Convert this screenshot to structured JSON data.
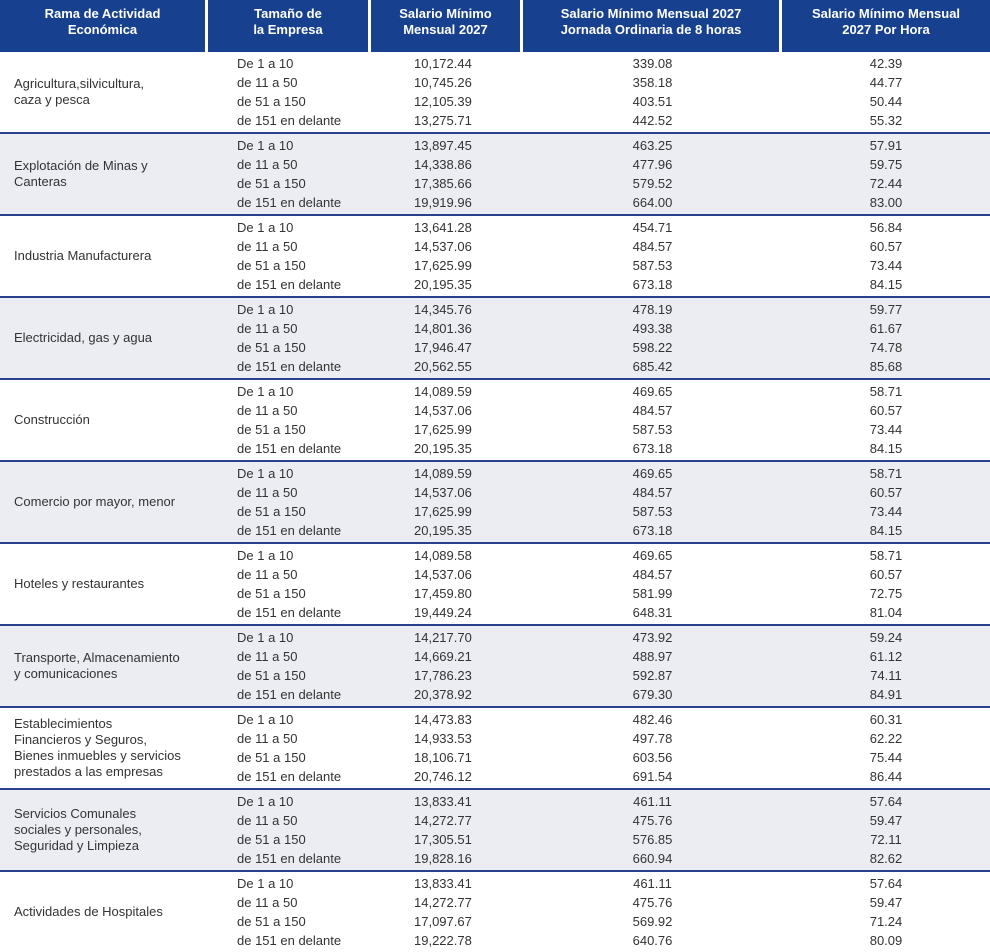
{
  "table": {
    "headers": [
      {
        "id": "sector",
        "label": "Rama de Actividad\nEconómica"
      },
      {
        "id": "size",
        "label": "Tamaño de\nla Empresa"
      },
      {
        "id": "monthly",
        "label": "Salario Mínimo\nMensual 2027"
      },
      {
        "id": "daily",
        "label": "Salario Mínimo Mensual 2027\nJornada Ordinaria de 8 horas"
      },
      {
        "id": "hourly",
        "label": "Salario Mínimo Mensual\n2027 Por Hora"
      }
    ],
    "sectors": [
      {
        "name": "Agricultura,silvicultura,\ncaza y pesca",
        "rows": [
          {
            "size": "De 1 a 10",
            "monthly": "10,172.44",
            "daily": "339.08",
            "hourly": "42.39"
          },
          {
            "size": "de 11 a 50",
            "monthly": "10,745.26",
            "daily": "358.18",
            "hourly": "44.77"
          },
          {
            "size": "de 51 a 150",
            "monthly": "12,105.39",
            "daily": "403.51",
            "hourly": "50.44"
          },
          {
            "size": "de 151 en delante",
            "monthly": "13,275.71",
            "daily": "442.52",
            "hourly": "55.32"
          }
        ]
      },
      {
        "name": "Explotación de Minas y\nCanteras",
        "rows": [
          {
            "size": "De 1 a 10",
            "monthly": "13,897.45",
            "daily": "463.25",
            "hourly": "57.91"
          },
          {
            "size": "de 11 a 50",
            "monthly": "14,338.86",
            "daily": "477.96",
            "hourly": "59.75"
          },
          {
            "size": "de 51 a 150",
            "monthly": "17,385.66",
            "daily": "579.52",
            "hourly": "72.44"
          },
          {
            "size": "de 151 en delante",
            "monthly": "19,919.96",
            "daily": "664.00",
            "hourly": "83.00"
          }
        ]
      },
      {
        "name": "Industria Manufacturera",
        "rows": [
          {
            "size": "De 1 a 10",
            "monthly": "13,641.28",
            "daily": "454.71",
            "hourly": "56.84"
          },
          {
            "size": "de 11 a 50",
            "monthly": "14,537.06",
            "daily": "484.57",
            "hourly": "60.57"
          },
          {
            "size": "de 51 a 150",
            "monthly": "17,625.99",
            "daily": "587.53",
            "hourly": "73.44"
          },
          {
            "size": "de 151 en delante",
            "monthly": "20,195.35",
            "daily": "673.18",
            "hourly": "84.15"
          }
        ]
      },
      {
        "name": "Electricidad, gas y agua",
        "rows": [
          {
            "size": "De 1 a 10",
            "monthly": "14,345.76",
            "daily": "478.19",
            "hourly": "59.77"
          },
          {
            "size": "de 11 a 50",
            "monthly": "14,801.36",
            "daily": "493.38",
            "hourly": "61.67"
          },
          {
            "size": "de 51 a 150",
            "monthly": "17,946.47",
            "daily": "598.22",
            "hourly": "74.78"
          },
          {
            "size": "de 151 en delante",
            "monthly": "20,562.55",
            "daily": "685.42",
            "hourly": "85.68"
          }
        ]
      },
      {
        "name": "Construcción",
        "rows": [
          {
            "size": "De 1 a 10",
            "monthly": "14,089.59",
            "daily": "469.65",
            "hourly": "58.71"
          },
          {
            "size": "de 11 a 50",
            "monthly": "14,537.06",
            "daily": "484.57",
            "hourly": "60.57"
          },
          {
            "size": "de 51 a 150",
            "monthly": "17,625.99",
            "daily": "587.53",
            "hourly": "73.44"
          },
          {
            "size": "de 151 en delante",
            "monthly": "20,195.35",
            "daily": "673.18",
            "hourly": "84.15"
          }
        ]
      },
      {
        "name": "Comercio por mayor, menor",
        "rows": [
          {
            "size": "De 1 a 10",
            "monthly": "14,089.59",
            "daily": "469.65",
            "hourly": "58.71"
          },
          {
            "size": "de 11 a 50",
            "monthly": "14,537.06",
            "daily": "484.57",
            "hourly": "60.57"
          },
          {
            "size": "de 51 a 150",
            "monthly": "17,625.99",
            "daily": "587.53",
            "hourly": "73.44"
          },
          {
            "size": "de 151 en delante",
            "monthly": "20,195.35",
            "daily": "673.18",
            "hourly": "84.15"
          }
        ]
      },
      {
        "name": "Hoteles y restaurantes",
        "rows": [
          {
            "size": "De 1 a 10",
            "monthly": "14,089.58",
            "daily": "469.65",
            "hourly": "58.71"
          },
          {
            "size": "de 11 a 50",
            "monthly": "14,537.06",
            "daily": "484.57",
            "hourly": "60.57"
          },
          {
            "size": "de 51 a 150",
            "monthly": "17,459.80",
            "daily": "581.99",
            "hourly": "72.75"
          },
          {
            "size": "de 151 en delante",
            "monthly": "19,449.24",
            "daily": "648.31",
            "hourly": "81.04"
          }
        ]
      },
      {
        "name": "Transporte, Almacenamiento\ny comunicaciones",
        "rows": [
          {
            "size": "De 1 a 10",
            "monthly": "14,217.70",
            "daily": "473.92",
            "hourly": "59.24"
          },
          {
            "size": "de 11 a 50",
            "monthly": "14,669.21",
            "daily": "488.97",
            "hourly": "61.12"
          },
          {
            "size": "de 51 a 150",
            "monthly": "17,786.23",
            "daily": "592.87",
            "hourly": "74.11"
          },
          {
            "size": "de 151 en delante",
            "monthly": "20,378.92",
            "daily": "679.30",
            "hourly": "84.91"
          }
        ]
      },
      {
        "name": "Establecimientos\nFinancieros y Seguros,\nBienes inmuebles y servicios\nprestados a las empresas",
        "rows": [
          {
            "size": "De 1 a 10",
            "monthly": "14,473.83",
            "daily": "482.46",
            "hourly": "60.31"
          },
          {
            "size": "de 11 a 50",
            "monthly": "14,933.53",
            "daily": "497.78",
            "hourly": "62.22"
          },
          {
            "size": "de 51 a 150",
            "monthly": "18,106.71",
            "daily": "603.56",
            "hourly": "75.44"
          },
          {
            "size": "de 151 en delante",
            "monthly": "20,746.12",
            "daily": "691.54",
            "hourly": "86.44"
          }
        ]
      },
      {
        "name": "Servicios Comunales\nsociales y personales,\nSeguridad y Limpieza",
        "rows": [
          {
            "size": "De 1 a 10",
            "monthly": "13,833.41",
            "daily": "461.11",
            "hourly": "57.64"
          },
          {
            "size": "de 11 a 50",
            "monthly": "14,272.77",
            "daily": "475.76",
            "hourly": "59.47"
          },
          {
            "size": "de 51 a 150",
            "monthly": "17,305.51",
            "daily": "576.85",
            "hourly": "72.11"
          },
          {
            "size": "de 151 en delante",
            "monthly": "19,828.16",
            "daily": "660.94",
            "hourly": "82.62"
          }
        ]
      },
      {
        "name": "Actividades de Hospitales",
        "rows": [
          {
            "size": "De 1 a 10",
            "monthly": "13,833.41",
            "daily": "461.11",
            "hourly": "57.64"
          },
          {
            "size": "de 11 a 50",
            "monthly": "14,272.77",
            "daily": "475.76",
            "hourly": "59.47"
          },
          {
            "size": "de 51 a 150",
            "monthly": "17,097.67",
            "daily": "569.92",
            "hourly": "71.24"
          },
          {
            "size": "de 151 en delante",
            "monthly": "19,222.78",
            "daily": "640.76",
            "hourly": "80.09"
          }
        ]
      }
    ]
  },
  "colors": {
    "header_bg": "#17418f",
    "header_text": "#ffffff",
    "alt_row_bg": "#ecedf3",
    "divider": "#2b3f8f",
    "body_text": "#333333"
  }
}
